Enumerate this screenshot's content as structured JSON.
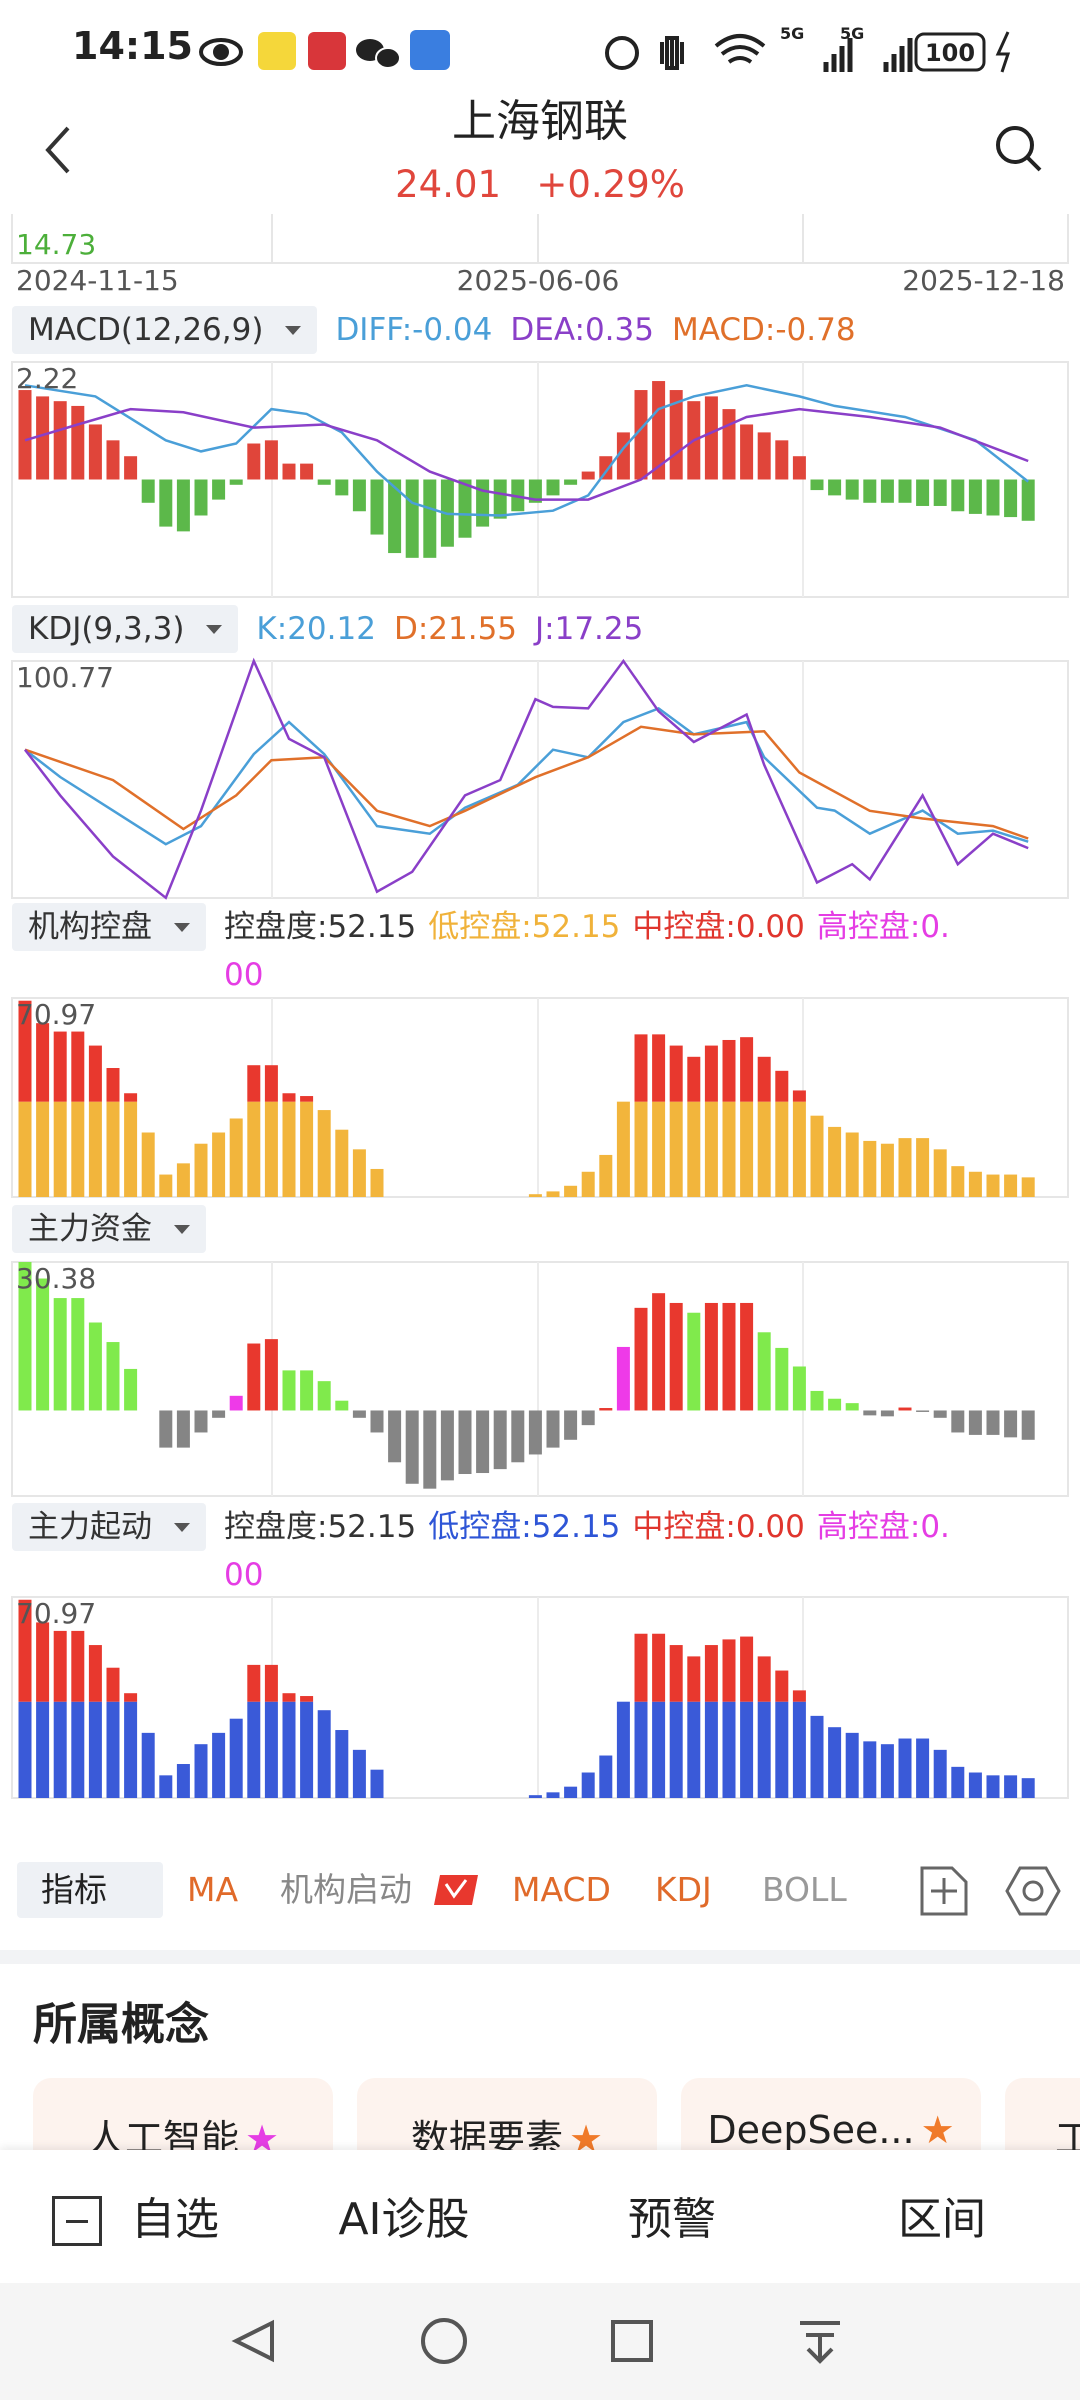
{
  "status_bar": {
    "time": "14:15",
    "network": [
      "5G",
      "5G"
    ],
    "battery": "100"
  },
  "header": {
    "title": "上海钢联",
    "price": "24.01",
    "change": "+0.29%"
  },
  "main_chart": {
    "low_label": "14.73",
    "dates": [
      "2024-11-15",
      "2025-06-06",
      "2025-12-18"
    ]
  },
  "macd": {
    "selector": "MACD(12,26,9)",
    "legend": [
      "DIFF:-0.04",
      "DEA:0.35",
      "MACD:-0.78"
    ],
    "max_label": "2.22",
    "ylim": [
      -2.22,
      2.22
    ],
    "up_color": "#e0453a",
    "down_color": "#5cb84a",
    "histogram": [
      1.69,
      1.57,
      1.48,
      1.39,
      1.04,
      0.74,
      0.44,
      -0.44,
      -0.89,
      -0.98,
      -0.68,
      -0.38,
      -0.1,
      0.68,
      0.74,
      0.3,
      0.3,
      -0.1,
      -0.3,
      -0.6,
      -1.04,
      -1.39,
      -1.48,
      -1.48,
      -1.27,
      -1.1,
      -0.89,
      -0.74,
      -0.6,
      -0.44,
      -0.3,
      -0.1,
      0.15,
      0.44,
      0.89,
      1.69,
      1.86,
      1.69,
      1.48,
      1.57,
      1.33,
      1.04,
      0.89,
      0.74,
      0.44,
      -0.2,
      -0.3,
      -0.38,
      -0.44,
      -0.44,
      -0.44,
      -0.5,
      -0.5,
      -0.6,
      -0.65,
      -0.68,
      -0.71,
      -0.78
    ],
    "lines": [
      {
        "color": "#4a9fd8",
        "x": [
          0,
          4,
          8,
          10,
          12,
          14,
          16,
          18,
          20,
          22,
          24,
          27,
          30,
          32,
          34,
          36,
          38,
          41,
          44,
          46,
          50,
          54,
          57
        ],
        "values": [
          1.78,
          1.57,
          0.74,
          0.53,
          0.68,
          1.33,
          1.24,
          0.89,
          0.15,
          -0.44,
          -0.65,
          -0.68,
          -0.59,
          -0.3,
          0.59,
          1.33,
          1.57,
          1.78,
          1.57,
          1.39,
          1.18,
          0.74,
          -0.04
        ]
      },
      {
        "color": "#8a3fc8",
        "x": [
          0,
          3,
          6,
          9,
          13,
          17,
          20,
          23,
          26,
          29,
          32,
          35,
          38,
          41,
          44,
          48,
          52,
          57
        ],
        "values": [
          0.74,
          1.04,
          1.33,
          1.27,
          0.98,
          1.04,
          0.74,
          0.15,
          -0.21,
          -0.38,
          -0.38,
          0,
          0.74,
          1.18,
          1.33,
          1.18,
          0.98,
          0.35
        ]
      }
    ]
  },
  "kdj": {
    "selector": "KDJ(9,3,3)",
    "legend": [
      "K:20.12",
      "D:21.55",
      "J:17.25"
    ],
    "max_label": "100.77",
    "ylim": [
      -5,
      100.77
    ],
    "lines": [
      {
        "color": "#4a9fd8",
        "x": [
          0,
          2,
          5,
          8,
          10,
          13,
          15,
          17,
          20,
          23,
          25,
          28,
          30,
          32,
          34,
          36,
          38,
          41,
          42,
          45,
          46,
          48,
          51,
          53,
          55,
          57
        ],
        "values": [
          61.2,
          49,
          34,
          19,
          27.1,
          59.2,
          73.5,
          59.2,
          27.1,
          23.7,
          35.3,
          45.5,
          61.2,
          57.8,
          73.5,
          79.6,
          68,
          73.5,
          57.8,
          35.3,
          34,
          23.7,
          34,
          23.7,
          25.1,
          20.12
        ]
      },
      {
        "color": "#e0702a",
        "x": [
          0,
          5,
          9,
          12,
          14,
          17,
          20,
          23,
          25,
          29,
          32,
          35,
          38,
          42,
          44,
          48,
          51,
          55,
          57
        ],
        "values": [
          61.2,
          47.6,
          25.8,
          40.8,
          56.5,
          57.8,
          33.9,
          27.1,
          33.9,
          48.9,
          57.8,
          71.4,
          68,
          69.4,
          51,
          33.9,
          30.5,
          27.1,
          21.55
        ]
      },
      {
        "color": "#8a3fc8",
        "x": [
          0,
          2,
          5,
          8,
          10,
          13,
          15,
          17,
          20,
          22,
          25,
          27,
          29,
          30,
          32,
          34,
          36,
          38,
          41,
          42,
          45,
          47,
          48,
          51,
          53,
          55,
          57
        ],
        "values": [
          61.2,
          40.8,
          13.5,
          -4.9,
          34,
          100.77,
          66,
          57.8,
          -2.2,
          6.7,
          40.8,
          47.6,
          83.7,
          80.3,
          79.6,
          100.77,
          78.3,
          64.6,
          76.9,
          54.4,
          1.9,
          10.1,
          3.3,
          40.8,
          10.1,
          23.7,
          17.25
        ]
      }
    ]
  },
  "control": {
    "selector": "机构控盘",
    "legend": [
      "控盘度:52.15",
      "低控盘:52.15",
      "中控盘:0.00",
      "高控盘:0.00"
    ],
    "max_label": "70.97",
    "ylim": [
      0,
      70.97
    ],
    "low_color": "#f2b53c",
    "mid_color": "#e8382e",
    "low": [
      34,
      34,
      34,
      34,
      34,
      34,
      34,
      23,
      8,
      12,
      19,
      23,
      28,
      34,
      34,
      34,
      34,
      31,
      24,
      17,
      10,
      null,
      null,
      null,
      null,
      null,
      null,
      null,
      null,
      1,
      2,
      4,
      9,
      15,
      34,
      34,
      34,
      34,
      34,
      34,
      34,
      34,
      34,
      34,
      34,
      29,
      25,
      23,
      20,
      19,
      21,
      21,
      17,
      11,
      9,
      8,
      8,
      7
    ],
    "mid": [
      36,
      28,
      25,
      25,
      20,
      12,
      3,
      0,
      0,
      0,
      0,
      0,
      0,
      13,
      13,
      3,
      2,
      0,
      0,
      0,
      0,
      null,
      null,
      null,
      null,
      null,
      null,
      null,
      null,
      0,
      0,
      0,
      0,
      0,
      0,
      24,
      24,
      20,
      16,
      20,
      22,
      23,
      16,
      11,
      4,
      0,
      0,
      0,
      0,
      0,
      0,
      0,
      0,
      0,
      0,
      0,
      0,
      0
    ]
  },
  "money": {
    "selector": "主力资金",
    "max_label": "30.38",
    "ylim": [
      -17.5,
      30.38
    ],
    "palette": {
      "g": "#80ea4c",
      "r": "#e8382e",
      "m": "#ee3ae8",
      "k": "#858585"
    },
    "kinds": "gggggggkkkkkmrrggggkkkkkkkkkkkkkkrmrrrgrrrggggggkkrkkkkkkk",
    "values": [
      30.38,
      27,
      23,
      23,
      18,
      14,
      8.5,
      0,
      -7.6,
      -7.6,
      -4.5,
      -1.5,
      3,
      13.7,
      14.6,
      8.2,
      8.2,
      6,
      2,
      -1.5,
      -4.5,
      -10.6,
      -15,
      -16,
      -14.3,
      -13,
      -12.8,
      -12,
      -10.6,
      -9,
      -7.6,
      -6,
      -3,
      0.5,
      13,
      21,
      24,
      22,
      20,
      22,
      22,
      22,
      16,
      12.8,
      9,
      4,
      2.4,
      1.5,
      -1,
      -1.2,
      0.6,
      -0.3,
      -1.5,
      -4.5,
      -5,
      -5,
      -5.5,
      -6
    ]
  },
  "start": {
    "selector": "主力起动",
    "legend": [
      "控盘度:52.15",
      "低控盘:52.15",
      "中控盘:0.00",
      "高控盘:0.00"
    ],
    "max_label": "70.97",
    "low_color": "#3a5ad8",
    "mid_color": "#e8382e"
  },
  "tabs": {
    "selector": "指标",
    "items": [
      "MA",
      "机构启动",
      "MACD",
      "KDJ",
      "BOLL"
    ]
  },
  "concepts": {
    "title": "所属概念",
    "items": [
      "人工智能",
      "数据要素",
      "DeepSee...",
      "工"
    ]
  },
  "bottom_bar": [
    "自选",
    "AI诊股",
    "预警",
    "区间"
  ]
}
